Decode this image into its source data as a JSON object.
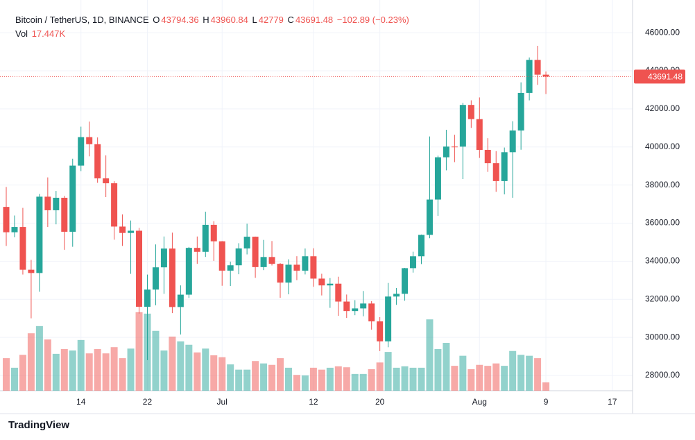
{
  "chart_data": {
    "type": "candlestick",
    "title": "Bitcoin / TetherUS, 1D, BINANCE",
    "ohlc_labels": [
      "O",
      "H",
      "L",
      "C"
    ],
    "change": "−102.89 (−0.23%)",
    "vol_label": {
      "name": "Vol",
      "value_label": "17.447K"
    },
    "brand": "TradingView",
    "up_color": "#26a69a",
    "down_color": "#ef5350",
    "x": [
      "06-05",
      "06-06",
      "06-07",
      "06-08",
      "06-09",
      "06-10",
      "06-11",
      "06-12",
      "06-13",
      "06-14",
      "06-15",
      "06-16",
      "06-17",
      "06-18",
      "06-19",
      "06-20",
      "06-21",
      "06-22",
      "06-23",
      "06-24",
      "06-25",
      "06-26",
      "06-27",
      "06-28",
      "06-29",
      "06-30",
      "07-01",
      "07-02",
      "07-03",
      "07-04",
      "07-05",
      "07-06",
      "07-07",
      "07-08",
      "07-09",
      "07-10",
      "07-11",
      "07-12",
      "07-13",
      "07-14",
      "07-15",
      "07-16",
      "07-17",
      "07-18",
      "07-19",
      "07-20",
      "07-21",
      "07-22",
      "07-23",
      "07-24",
      "07-25",
      "07-26",
      "07-27",
      "07-28",
      "07-29",
      "07-30",
      "07-31",
      "08-01",
      "08-02",
      "08-03",
      "08-04",
      "08-05",
      "08-06",
      "08-07",
      "08-08",
      "08-09"
    ],
    "ohlc": [
      [
        36851,
        37900,
        34800,
        35520
      ],
      [
        35520,
        36400,
        35258,
        35796
      ],
      [
        35796,
        36800,
        33300,
        33552
      ],
      [
        33552,
        34069,
        31000,
        33380
      ],
      [
        33380,
        37530,
        32396,
        37388
      ],
      [
        37388,
        38400,
        35800,
        36675
      ],
      [
        36675,
        37690,
        35937,
        37331
      ],
      [
        37331,
        37430,
        34600,
        35546
      ],
      [
        35546,
        39380,
        34757,
        39020
      ],
      [
        39020,
        41064,
        38730,
        40516
      ],
      [
        40516,
        41330,
        39506,
        40144
      ],
      [
        40144,
        40500,
        38116,
        38349
      ],
      [
        38349,
        39559,
        37365,
        38092
      ],
      [
        38092,
        38200,
        35129,
        35819
      ],
      [
        35819,
        36457,
        34803,
        35483
      ],
      [
        35483,
        36137,
        33336,
        35600
      ],
      [
        35600,
        35750,
        31251,
        31608
      ],
      [
        31608,
        33298,
        28805,
        32509
      ],
      [
        32509,
        34881,
        31683,
        33678
      ],
      [
        33678,
        35298,
        32286,
        34663
      ],
      [
        34663,
        35500,
        31275,
        31594
      ],
      [
        31594,
        32730,
        30151,
        32243
      ],
      [
        32243,
        34749,
        32071,
        34700
      ],
      [
        34700,
        35297,
        33862,
        34494
      ],
      [
        34494,
        36600,
        34225,
        35911
      ],
      [
        35911,
        36100,
        34017,
        35045
      ],
      [
        35045,
        35057,
        32711,
        33504
      ],
      [
        33504,
        33977,
        32699,
        33786
      ],
      [
        33786,
        34945,
        33316,
        34669
      ],
      [
        34669,
        35967,
        34357,
        35286
      ],
      [
        35286,
        35293,
        33125,
        33690
      ],
      [
        33690,
        35118,
        33532,
        34220
      ],
      [
        34220,
        35059,
        33777,
        33862
      ],
      [
        33862,
        33900,
        32077,
        32875
      ],
      [
        32875,
        34100,
        32261,
        33815
      ],
      [
        33815,
        34262,
        33004,
        33502
      ],
      [
        33502,
        34666,
        33306,
        34259
      ],
      [
        34259,
        34678,
        32658,
        33086
      ],
      [
        33086,
        33340,
        32202,
        32729
      ],
      [
        32729,
        33114,
        31550,
        32820
      ],
      [
        32820,
        33185,
        31133,
        31880
      ],
      [
        31880,
        32250,
        31020,
        31383
      ],
      [
        31383,
        31955,
        31164,
        31520
      ],
      [
        31520,
        32435,
        31108,
        31778
      ],
      [
        31778,
        31899,
        30407,
        30839
      ],
      [
        30839,
        31063,
        29278,
        29790
      ],
      [
        29790,
        32858,
        29482,
        32144
      ],
      [
        32144,
        32591,
        31708,
        32287
      ],
      [
        32287,
        33650,
        31924,
        33634
      ],
      [
        33634,
        34500,
        33401,
        34258
      ],
      [
        34258,
        35398,
        33851,
        35381
      ],
      [
        35381,
        40550,
        35205,
        37237
      ],
      [
        37237,
        39542,
        36383,
        39457
      ],
      [
        39457,
        40900,
        38772,
        40019
      ],
      [
        40019,
        40640,
        39200,
        40016
      ],
      [
        40016,
        42316,
        38313,
        42206
      ],
      [
        42206,
        42448,
        41000,
        41461
      ],
      [
        41461,
        42599,
        39422,
        39845
      ],
      [
        39845,
        40459,
        38690,
        39147
      ],
      [
        39147,
        39780,
        37642,
        38207
      ],
      [
        38207,
        39969,
        37508,
        39723
      ],
      [
        39723,
        41350,
        37332,
        40862
      ],
      [
        40862,
        43392,
        39853,
        42836
      ],
      [
        42836,
        44700,
        42446,
        44572
      ],
      [
        44572,
        45310,
        43261,
        43794
      ],
      [
        43794.36,
        43960.84,
        42779.0,
        43691.48
      ]
    ],
    "volume": [
      68,
      48,
      75,
      120,
      135,
      107,
      77,
      87,
      84,
      106,
      78,
      87,
      78,
      91,
      68,
      88,
      164,
      161,
      125,
      84,
      113,
      103,
      96,
      80,
      88,
      74,
      70,
      55,
      44,
      44,
      62,
      57,
      54,
      68,
      48,
      33,
      32,
      48,
      44,
      48,
      51,
      49,
      35,
      35,
      45,
      59,
      81,
      48,
      51,
      48,
      48,
      149,
      87,
      100,
      52,
      73,
      45,
      54,
      52,
      57,
      52,
      83,
      75,
      73,
      68,
      17.447
    ],
    "ylim": [
      27198,
      47716
    ],
    "yticks": [
      {
        "value": 28000,
        "label": "28000.00"
      },
      {
        "value": 30000,
        "label": "30000.00"
      },
      {
        "value": 32000,
        "label": "32000.00"
      },
      {
        "value": 34000,
        "label": "34000.00"
      },
      {
        "value": 36000,
        "label": "36000.00"
      },
      {
        "value": 38000,
        "label": "38000.00"
      },
      {
        "value": 40000,
        "label": "40000.00"
      },
      {
        "value": 42000,
        "label": "42000.00"
      },
      {
        "value": 44000,
        "label": "44000.00"
      },
      {
        "value": 46000,
        "label": "46000.00"
      }
    ],
    "xticks": [
      {
        "value": "06-14",
        "label": "14"
      },
      {
        "value": "06-22",
        "label": "22"
      },
      {
        "value": "07-01",
        "label": "Jul"
      },
      {
        "value": "07-12",
        "label": "12"
      },
      {
        "value": "07-20",
        "label": "20"
      },
      {
        "value": "08-01",
        "label": "Aug"
      },
      {
        "value": "08-09",
        "label": "9"
      },
      {
        "value": "08-17",
        "label": "17"
      }
    ],
    "grid": true
  }
}
